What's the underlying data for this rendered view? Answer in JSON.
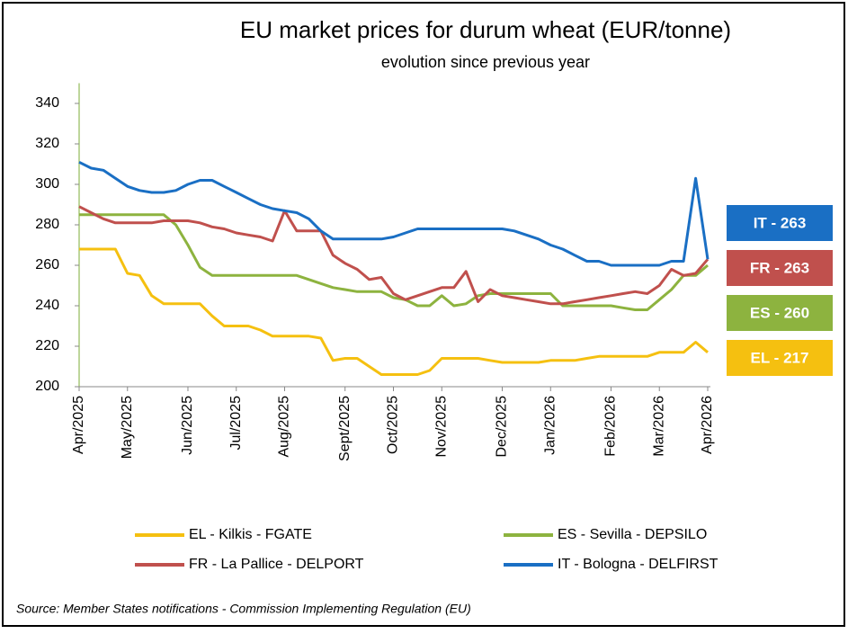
{
  "chart_data": {
    "type": "line",
    "title": "EU market prices for durum wheat (EUR/tonne)",
    "subtitle": "evolution since previous year",
    "source": "Source: Member States notifications - Commission Implementing Regulation (EU)",
    "categories": [
      "Apr/2025",
      null,
      null,
      null,
      "May/2025",
      null,
      null,
      null,
      null,
      "Jun/2025",
      null,
      null,
      null,
      "Jul/2025",
      null,
      null,
      null,
      "Aug/2025",
      null,
      null,
      null,
      null,
      "Sept/2025",
      null,
      null,
      null,
      "Oct/2025",
      null,
      null,
      null,
      "Nov/2025",
      null,
      null,
      null,
      null,
      "Dec/2025",
      null,
      null,
      null,
      "Jan/2026",
      null,
      null,
      null,
      null,
      "Feb/2026",
      null,
      null,
      null,
      "Mar/2026",
      null,
      null,
      null,
      "Apr/2026"
    ],
    "ylim": [
      200,
      350
    ],
    "yticks": [
      200,
      220,
      240,
      260,
      280,
      300,
      320,
      340
    ],
    "grid": false,
    "series": [
      {
        "name": "EL - Kilkis - FGATE",
        "color": "#f5c010",
        "end_label": "EL - 217",
        "values": [
          268,
          268,
          268,
          268,
          256,
          255,
          245,
          241,
          241,
          241,
          241,
          235,
          230,
          230,
          230,
          228,
          225,
          225,
          225,
          225,
          224,
          213,
          214,
          214,
          210,
          206,
          206,
          206,
          206,
          208,
          214,
          214,
          214,
          214,
          213,
          212,
          212,
          212,
          212,
          213,
          213,
          213,
          214,
          215,
          215,
          215,
          215,
          215,
          217,
          217,
          217,
          222,
          217
        ]
      },
      {
        "name": "ES - Sevilla - DEPSILO",
        "color": "#8db33f",
        "end_label": "ES - 260",
        "values": [
          285,
          285,
          285,
          285,
          285,
          285,
          285,
          285,
          280,
          270,
          259,
          255,
          255,
          255,
          255,
          255,
          255,
          255,
          255,
          253,
          251,
          249,
          248,
          247,
          247,
          247,
          244,
          243,
          240,
          240,
          245,
          240,
          241,
          245,
          246,
          246,
          246,
          246,
          246,
          246,
          240,
          240,
          240,
          240,
          240,
          239,
          238,
          238,
          243,
          248,
          255,
          255,
          260
        ]
      },
      {
        "name": "FR - La Pallice - DELPORT",
        "color": "#c0504d",
        "end_label": "FR - 263",
        "values": [
          289,
          286,
          283,
          281,
          281,
          281,
          281,
          282,
          282,
          282,
          281,
          279,
          278,
          276,
          275,
          274,
          272,
          287,
          277,
          277,
          277,
          265,
          261,
          258,
          253,
          254,
          246,
          243,
          245,
          247,
          249,
          249,
          257,
          242,
          248,
          245,
          244,
          243,
          242,
          241,
          241,
          242,
          243,
          244,
          245,
          246,
          247,
          246,
          250,
          258,
          255,
          256,
          263
        ]
      },
      {
        "name": "IT - Bologna - DELFIRST",
        "color": "#1a6fc4",
        "end_label": "IT - 263",
        "values": [
          311,
          308,
          307,
          303,
          299,
          297,
          296,
          296,
          297,
          300,
          302,
          302,
          299,
          296,
          293,
          290,
          288,
          287,
          286,
          283,
          277,
          273,
          273,
          273,
          273,
          273,
          274,
          276,
          278,
          278,
          278,
          278,
          278,
          278,
          278,
          278,
          277,
          275,
          273,
          270,
          268,
          265,
          262,
          262,
          260,
          260,
          260,
          260,
          260,
          262,
          262,
          303,
          263
        ]
      }
    ]
  }
}
